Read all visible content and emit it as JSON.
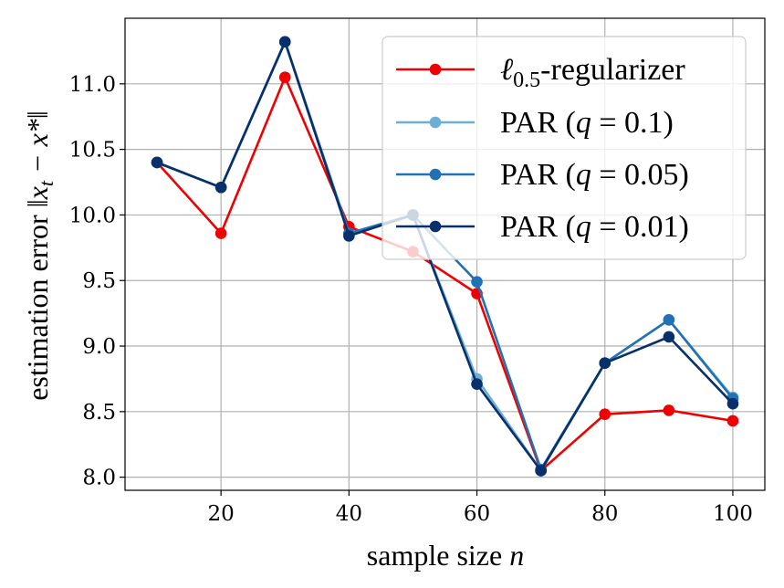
{
  "chart_data": {
    "type": "line",
    "title": "",
    "xlabel_text": "sample size",
    "xlabel_var": "n",
    "ylabel_text": "estimation error",
    "ylabel_math": "‖x",
    "ylabel_math_sub": "t",
    "ylabel_math_tail": " − x*‖",
    "xlim": [
      5,
      105
    ],
    "ylim": [
      7.9,
      11.5
    ],
    "x_ticks": [
      20,
      40,
      60,
      80,
      100
    ],
    "x_tick_labels": [
      "20",
      "40",
      "60",
      "80",
      "100"
    ],
    "y_ticks": [
      8.0,
      8.5,
      9.0,
      9.5,
      10.0,
      10.5,
      11.0
    ],
    "y_tick_labels": [
      "8.0",
      "8.5",
      "9.0",
      "9.5",
      "10.0",
      "10.5",
      "11.0"
    ],
    "grid": true,
    "legend_position": "top-right",
    "x": [
      10,
      20,
      30,
      40,
      50,
      60,
      70,
      80,
      90,
      100
    ],
    "series": [
      {
        "name": "ℓ0.5-regularizer",
        "legend_main": "ℓ",
        "legend_sub": "0.5",
        "legend_tail": "-regularizer",
        "color": "#f00000",
        "values": [
          10.4,
          9.86,
          11.05,
          9.91,
          9.72,
          9.4,
          8.05,
          8.48,
          8.51,
          8.43
        ]
      },
      {
        "name": "PAR (q = 0.1)",
        "legend_prefix": "PAR (",
        "legend_var": "q",
        "legend_eq": " = 0.1)",
        "color": "#6baed6",
        "values": [
          10.4,
          10.21,
          11.32,
          9.86,
          10.0,
          8.75,
          8.05,
          8.87,
          9.2,
          8.61
        ]
      },
      {
        "name": "PAR (q = 0.05)",
        "legend_prefix": "PAR (",
        "legend_var": "q",
        "legend_eq": " = 0.05)",
        "color": "#2171b5",
        "values": [
          10.4,
          10.21,
          11.32,
          9.86,
          10.0,
          9.49,
          8.06,
          8.87,
          9.2,
          8.6
        ]
      },
      {
        "name": "PAR (q = 0.01)",
        "legend_prefix": "PAR (",
        "legend_var": "q",
        "legend_eq": " = 0.01)",
        "color": "#08306b",
        "values": [
          10.4,
          10.21,
          11.32,
          9.84,
          10.0,
          8.71,
          8.05,
          8.87,
          9.07,
          8.56
        ]
      }
    ]
  }
}
